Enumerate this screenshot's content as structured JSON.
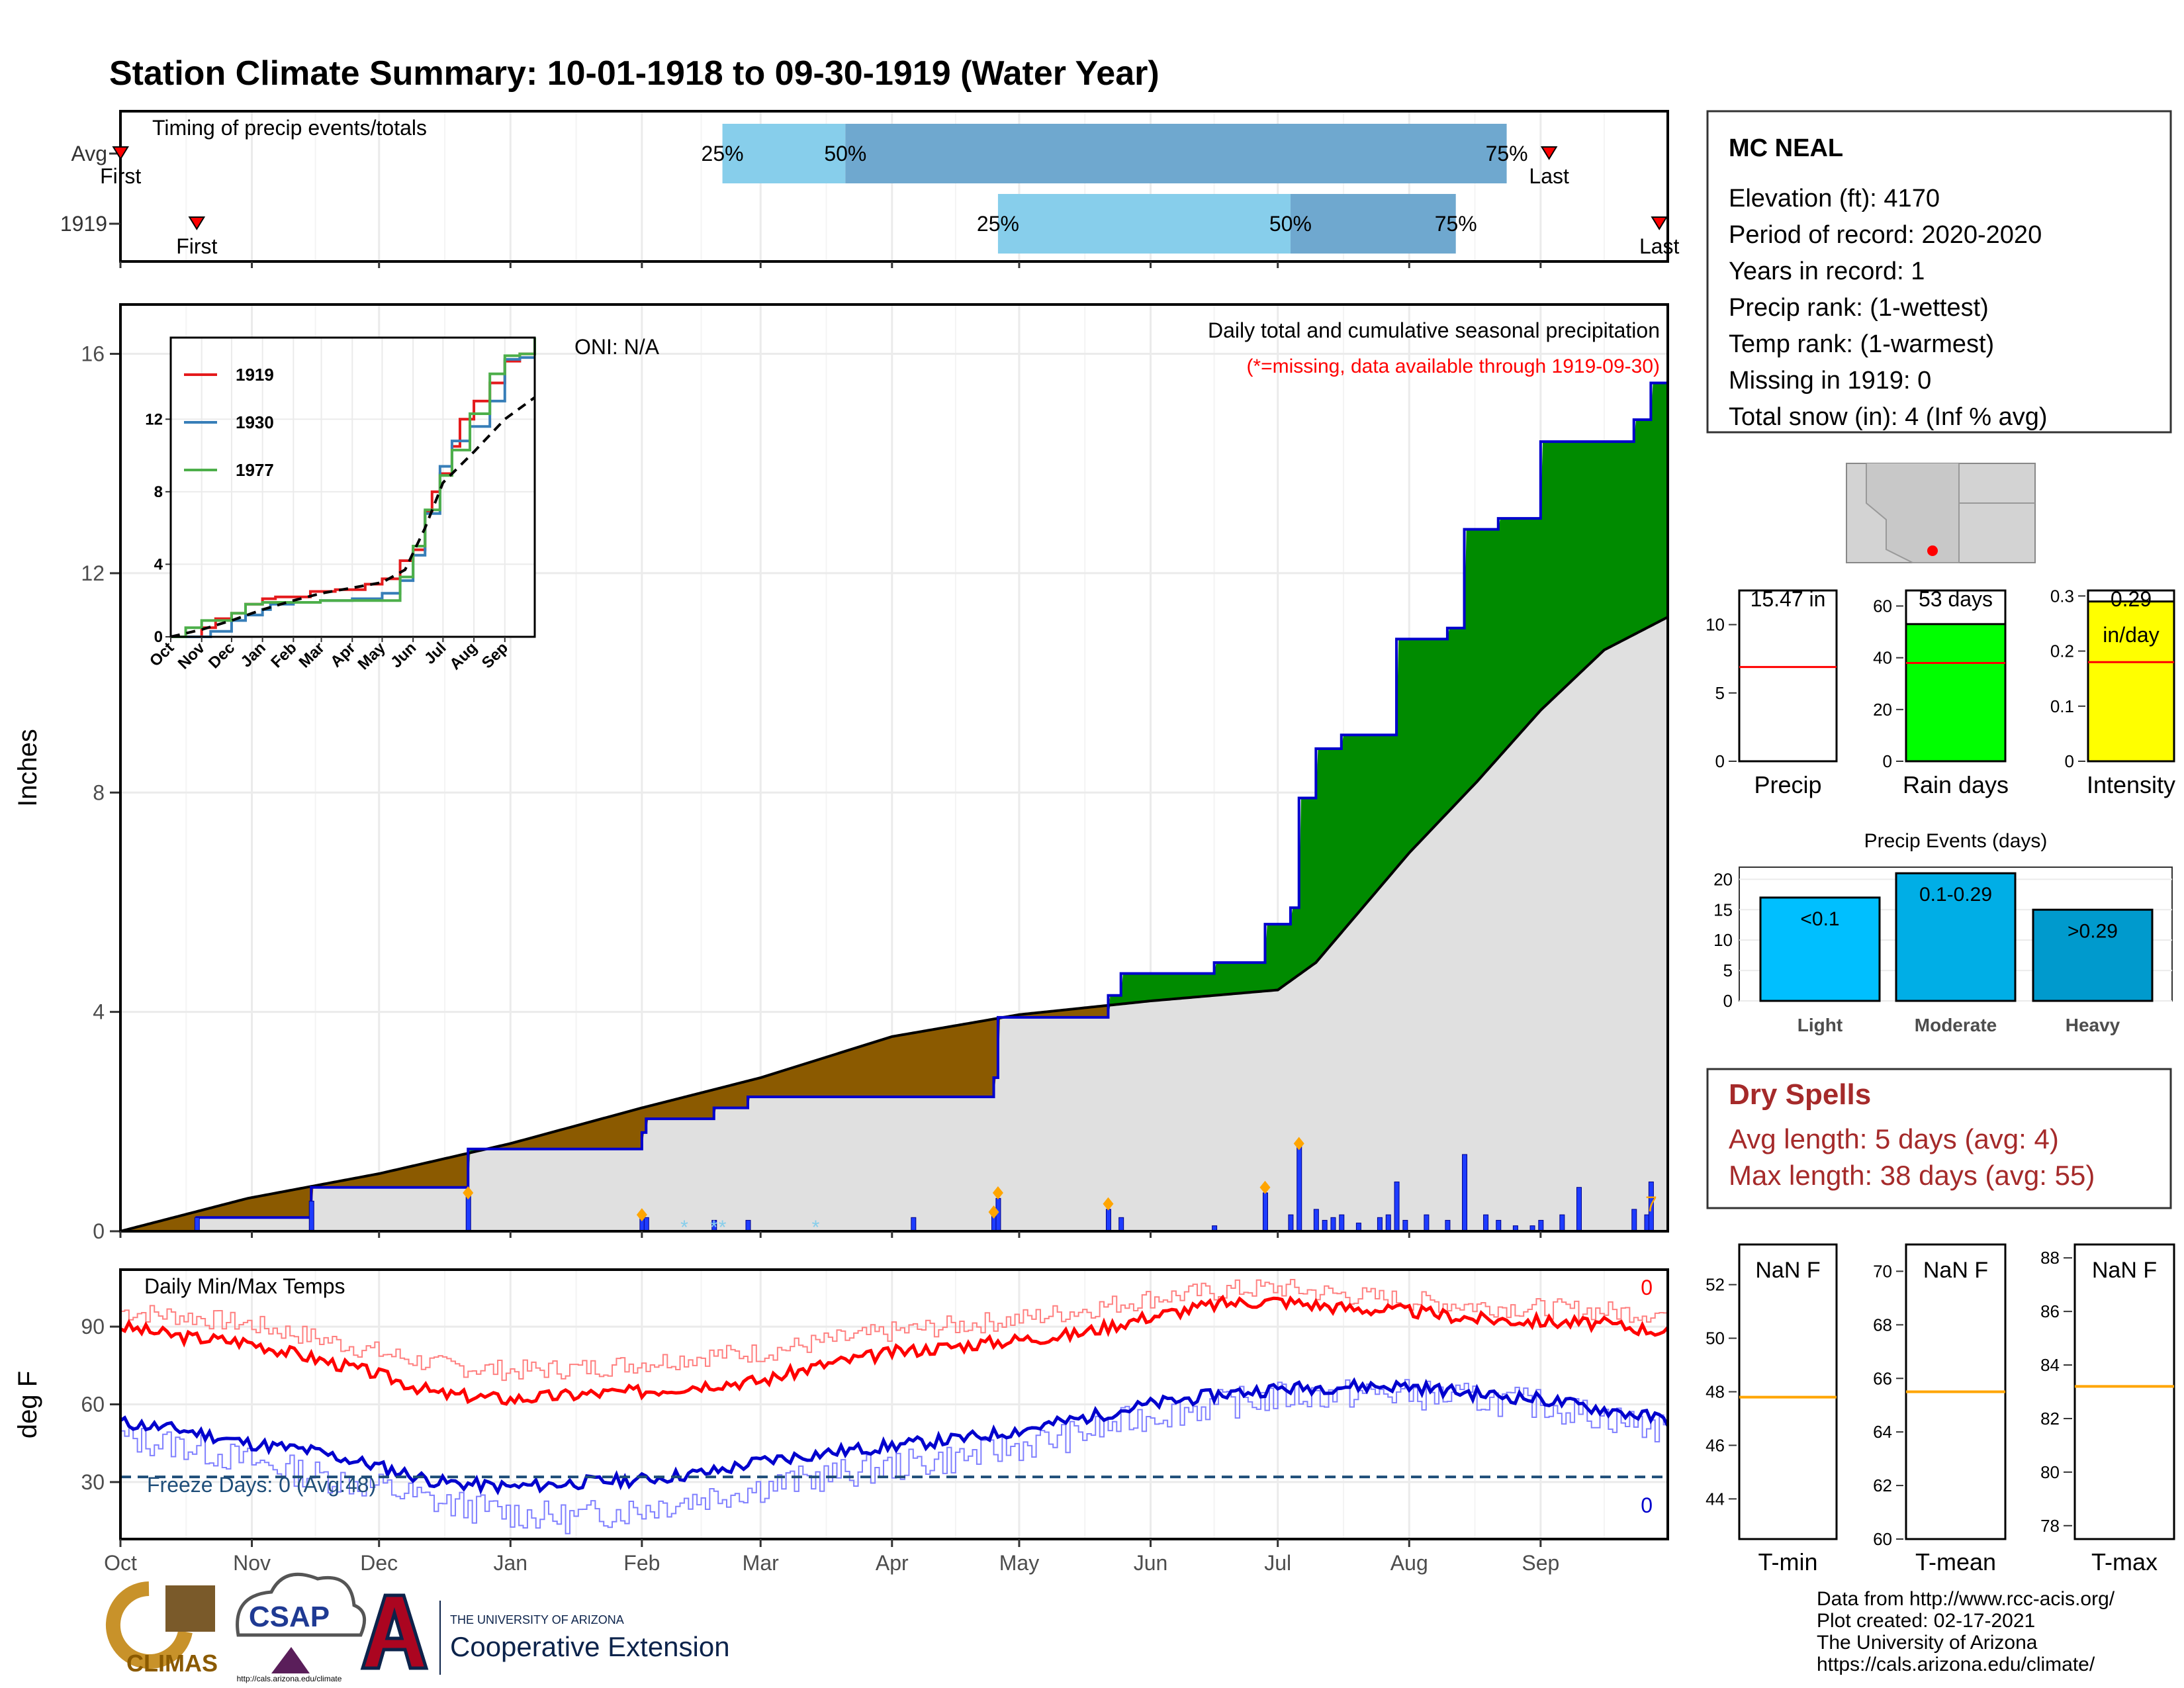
{
  "title": "Station Climate Summary: 10-01-1918 to 09-30-1919 (Water Year)",
  "colors": {
    "title": "#8b2500",
    "frame": "#000000",
    "grid": "#ebebeb",
    "light_blue": "#87ceeb",
    "mid_blue": "#6fa8cf",
    "deficit_brown": "#8b5a00",
    "surplus_green": "#008b00",
    "normal_fill": "#e0e0e0",
    "precip_line": "#0000cd",
    "bar_blue": "#1e3cff",
    "marker_orange": "#ffa500",
    "tmax": "#ff0000",
    "tmin": "#0000cd",
    "rain_green": "#00ff00",
    "intensity_yellow": "#ffff00",
    "event_light": "#00bfff",
    "event_moderate": "#00aee6",
    "event_heavy": "#009acd",
    "dry_spell_text": "#a52a2a",
    "freeze_line": "#1f4e79"
  },
  "timing": {
    "title": "Timing of precip events/totals",
    "rows": [
      {
        "label": "Avg",
        "first_label": "First",
        "last_label": "Last",
        "first": 0.03,
        "p25": 142,
        "p50": 171,
        "p75": 327,
        "last": 337,
        "labels": {
          "p25": "25%",
          "p50": "50%",
          "p75": "75%"
        }
      },
      {
        "label": "1919",
        "first_label": "First",
        "last_label": "Last",
        "first": 18,
        "p25": 207,
        "p50": 276,
        "p75": 315,
        "last": 363,
        "labels": {
          "p25": "25%",
          "p50": "50%",
          "p75": "75%"
        }
      }
    ]
  },
  "months": [
    "Oct",
    "Nov",
    "Dec",
    "Jan",
    "Feb",
    "Mar",
    "Apr",
    "May",
    "Jun",
    "Jul",
    "Aug",
    "Sep"
  ],
  "month_starts": [
    0,
    31,
    61,
    92,
    123,
    151,
    182,
    212,
    243,
    273,
    304,
    335
  ],
  "precip": {
    "ylabel": "Inches",
    "y_ticks": [
      0,
      4,
      8,
      12,
      16
    ],
    "ylim": [
      0,
      16.9
    ],
    "oni": "ONI: N/A",
    "subtitle": "Daily total and cumulative seasonal precipitation",
    "missing_note": "(*=missing, data available through 1919-09-30)",
    "corner_mark": "7",
    "normal_cumulative": [
      [
        0,
        0
      ],
      [
        30,
        0.6
      ],
      [
        61,
        1.05
      ],
      [
        92,
        1.6
      ],
      [
        123,
        2.25
      ],
      [
        151,
        2.8
      ],
      [
        182,
        3.55
      ],
      [
        212,
        3.95
      ],
      [
        243,
        4.2
      ],
      [
        258,
        4.3
      ],
      [
        273,
        4.4
      ],
      [
        282,
        4.9
      ],
      [
        293,
        5.9
      ],
      [
        304,
        6.9
      ],
      [
        320,
        8.2
      ],
      [
        335,
        9.5
      ],
      [
        350,
        10.6
      ],
      [
        365,
        11.2
      ]
    ],
    "observed_cumulative": [
      [
        0,
        0
      ],
      [
        18,
        0
      ],
      [
        18,
        0.25
      ],
      [
        45,
        0.25
      ],
      [
        45,
        0.8
      ],
      [
        82,
        0.8
      ],
      [
        82,
        1.5
      ],
      [
        123,
        1.5
      ],
      [
        123,
        1.8
      ],
      [
        124,
        1.8
      ],
      [
        124,
        2.05
      ],
      [
        140,
        2.05
      ],
      [
        140,
        2.25
      ],
      [
        148,
        2.25
      ],
      [
        148,
        2.45
      ],
      [
        206,
        2.45
      ],
      [
        206,
        2.8
      ],
      [
        207,
        2.8
      ],
      [
        207,
        3.9
      ],
      [
        233,
        3.9
      ],
      [
        233,
        4.3
      ],
      [
        236,
        4.3
      ],
      [
        236,
        4.7
      ],
      [
        258,
        4.7
      ],
      [
        258,
        4.9
      ],
      [
        270,
        4.9
      ],
      [
        270,
        5.6
      ],
      [
        276,
        5.6
      ],
      [
        276,
        5.9
      ],
      [
        278,
        5.9
      ],
      [
        278,
        7.9
      ],
      [
        282,
        7.9
      ],
      [
        282,
        8.8
      ],
      [
        288,
        8.8
      ],
      [
        288,
        9.05
      ],
      [
        301,
        9.05
      ],
      [
        301,
        10.8
      ],
      [
        313,
        10.8
      ],
      [
        313,
        11.0
      ],
      [
        317,
        11.0
      ],
      [
        317,
        12.8
      ],
      [
        325,
        12.8
      ],
      [
        325,
        13.0
      ],
      [
        335,
        13.0
      ],
      [
        335,
        14.4
      ],
      [
        357,
        14.4
      ],
      [
        357,
        14.8
      ],
      [
        361,
        14.8
      ],
      [
        361,
        15.47
      ],
      [
        365,
        15.47
      ]
    ],
    "daily_bars": [
      [
        18,
        0.25
      ],
      [
        45,
        0.55
      ],
      [
        82,
        0.7
      ],
      [
        123,
        0.3
      ],
      [
        124,
        0.25
      ],
      [
        140,
        0.2
      ],
      [
        148,
        0.2
      ],
      [
        187,
        0.25
      ],
      [
        206,
        0.35
      ],
      [
        207,
        0.6
      ],
      [
        233,
        0.4
      ],
      [
        236,
        0.25
      ],
      [
        258,
        0.1
      ],
      [
        270,
        0.7
      ],
      [
        276,
        0.3
      ],
      [
        278,
        1.6
      ],
      [
        282,
        0.4
      ],
      [
        284,
        0.2
      ],
      [
        286,
        0.25
      ],
      [
        288,
        0.3
      ],
      [
        292,
        0.15
      ],
      [
        297,
        0.25
      ],
      [
        299,
        0.3
      ],
      [
        301,
        0.9
      ],
      [
        303,
        0.2
      ],
      [
        308,
        0.3
      ],
      [
        313,
        0.2
      ],
      [
        317,
        1.4
      ],
      [
        322,
        0.3
      ],
      [
        325,
        0.2
      ],
      [
        329,
        0.1
      ],
      [
        333,
        0.1
      ],
      [
        335,
        0.2
      ],
      [
        340,
        0.3
      ],
      [
        344,
        0.8
      ],
      [
        357,
        0.4
      ],
      [
        360,
        0.3
      ],
      [
        361,
        0.9
      ]
    ],
    "orange_markers": [
      [
        82,
        0.7
      ],
      [
        123,
        0.3
      ],
      [
        206,
        0.35
      ],
      [
        207,
        0.7
      ],
      [
        233,
        0.5
      ],
      [
        270,
        0.8
      ],
      [
        278,
        1.6
      ]
    ],
    "missing_markers": [
      [
        133,
        0.05
      ],
      [
        140,
        0.05
      ],
      [
        142,
        0.05
      ],
      [
        164,
        0.05
      ]
    ]
  },
  "inset": {
    "legend": [
      "1919",
      "1930",
      "1977"
    ],
    "legend_colors": [
      "#e41a1c",
      "#377eb8",
      "#4daf4a"
    ],
    "y_ticks": [
      0,
      4,
      8,
      12
    ],
    "ylim": [
      0,
      16.5
    ],
    "x_labels": [
      "Oct",
      "Nov",
      "Dec",
      "Jan",
      "Feb",
      "Mar",
      "Apr",
      "May",
      "Jun",
      "Jul",
      "Aug",
      "Sep"
    ],
    "series": [
      {
        "name": "1919",
        "points": [
          [
            0,
            0
          ],
          [
            31,
            0.5
          ],
          [
            45,
            1.0
          ],
          [
            61,
            1.3
          ],
          [
            75,
            1.8
          ],
          [
            92,
            2.1
          ],
          [
            105,
            2.2
          ],
          [
            123,
            2.2
          ],
          [
            140,
            2.5
          ],
          [
            165,
            2.6
          ],
          [
            182,
            2.6
          ],
          [
            195,
            2.9
          ],
          [
            212,
            3.2
          ],
          [
            230,
            4.2
          ],
          [
            243,
            4.8
          ],
          [
            255,
            6.9
          ],
          [
            262,
            8.0
          ],
          [
            270,
            9.0
          ],
          [
            282,
            10.5
          ],
          [
            290,
            12.0
          ],
          [
            304,
            13.0
          ],
          [
            320,
            14.0
          ],
          [
            335,
            15.2
          ],
          [
            350,
            15.6
          ],
          [
            365,
            16.2
          ]
        ]
      },
      {
        "name": "1930",
        "points": [
          [
            0,
            0
          ],
          [
            40,
            0.3
          ],
          [
            61,
            0.9
          ],
          [
            75,
            1.2
          ],
          [
            92,
            1.5
          ],
          [
            100,
            1.8
          ],
          [
            123,
            1.9
          ],
          [
            150,
            2.0
          ],
          [
            182,
            2.1
          ],
          [
            212,
            2.4
          ],
          [
            230,
            3.1
          ],
          [
            243,
            4.5
          ],
          [
            255,
            6.8
          ],
          [
            270,
            9.4
          ],
          [
            282,
            10.8
          ],
          [
            300,
            11.6
          ],
          [
            320,
            13.0
          ],
          [
            335,
            15.3
          ],
          [
            350,
            15.4
          ],
          [
            365,
            15.4
          ]
        ]
      },
      {
        "name": "1977",
        "points": [
          [
            0,
            0
          ],
          [
            15,
            0.5
          ],
          [
            31,
            0.9
          ],
          [
            61,
            1.3
          ],
          [
            75,
            1.8
          ],
          [
            92,
            1.9
          ],
          [
            123,
            1.9
          ],
          [
            150,
            2.0
          ],
          [
            182,
            2.0
          ],
          [
            212,
            2.0
          ],
          [
            230,
            3.3
          ],
          [
            243,
            5.0
          ],
          [
            255,
            7.0
          ],
          [
            270,
            8.9
          ],
          [
            282,
            10.3
          ],
          [
            300,
            12.3
          ],
          [
            320,
            14.5
          ],
          [
            335,
            15.5
          ],
          [
            350,
            15.6
          ],
          [
            365,
            16.5
          ]
        ]
      }
    ],
    "average": [
      [
        0,
        0
      ],
      [
        31,
        0.4
      ],
      [
        61,
        0.9
      ],
      [
        92,
        1.5
      ],
      [
        123,
        2.0
      ],
      [
        151,
        2.4
      ],
      [
        182,
        2.7
      ],
      [
        212,
        3.0
      ],
      [
        235,
        3.7
      ],
      [
        255,
        6.0
      ],
      [
        273,
        8.5
      ],
      [
        304,
        10.2
      ],
      [
        335,
        12.0
      ],
      [
        365,
        13.2
      ]
    ]
  },
  "temps": {
    "title": "Daily Min/Max Temps",
    "ylabel": "deg F",
    "y_ticks": [
      30,
      60,
      90
    ],
    "ylim": [
      8,
      112
    ],
    "freeze_note": "Freeze Days: 0 (Avg:48)",
    "freeze_level": 32,
    "tmax_count": "0",
    "tmin_count": "0",
    "tmax_obs_key": [
      [
        0,
        90
      ],
      [
        15,
        86
      ],
      [
        30,
        84
      ],
      [
        45,
        78
      ],
      [
        60,
        72
      ],
      [
        75,
        64
      ],
      [
        92,
        62
      ],
      [
        110,
        64
      ],
      [
        123,
        65
      ],
      [
        140,
        68
      ],
      [
        151,
        69
      ],
      [
        165,
        75
      ],
      [
        182,
        80
      ],
      [
        200,
        83
      ],
      [
        212,
        85
      ],
      [
        225,
        87
      ],
      [
        243,
        94
      ],
      [
        260,
        99
      ],
      [
        273,
        100
      ],
      [
        290,
        97
      ],
      [
        304,
        96
      ],
      [
        320,
        93
      ],
      [
        335,
        92
      ],
      [
        350,
        91
      ],
      [
        365,
        88
      ]
    ],
    "tmax_avg_key": [
      [
        0,
        96
      ],
      [
        15,
        94
      ],
      [
        30,
        91
      ],
      [
        45,
        86
      ],
      [
        61,
        80
      ],
      [
        75,
        75
      ],
      [
        92,
        73
      ],
      [
        110,
        74
      ],
      [
        123,
        76
      ],
      [
        140,
        79
      ],
      [
        151,
        80
      ],
      [
        165,
        84
      ],
      [
        182,
        88
      ],
      [
        200,
        91
      ],
      [
        212,
        93
      ],
      [
        225,
        96
      ],
      [
        243,
        101
      ],
      [
        260,
        104
      ],
      [
        273,
        105
      ],
      [
        290,
        102
      ],
      [
        304,
        100
      ],
      [
        320,
        98
      ],
      [
        335,
        97
      ],
      [
        350,
        96
      ],
      [
        365,
        95
      ]
    ],
    "tmin_obs_key": [
      [
        0,
        53
      ],
      [
        15,
        50
      ],
      [
        30,
        45
      ],
      [
        45,
        42
      ],
      [
        61,
        36
      ],
      [
        75,
        30
      ],
      [
        92,
        28
      ],
      [
        110,
        30
      ],
      [
        123,
        31
      ],
      [
        140,
        34
      ],
      [
        151,
        38
      ],
      [
        165,
        41
      ],
      [
        182,
        44
      ],
      [
        200,
        47
      ],
      [
        212,
        50
      ],
      [
        225,
        54
      ],
      [
        243,
        60
      ],
      [
        260,
        64
      ],
      [
        273,
        66
      ],
      [
        290,
        67
      ],
      [
        304,
        67
      ],
      [
        320,
        64
      ],
      [
        335,
        62
      ],
      [
        350,
        58
      ],
      [
        365,
        54
      ]
    ],
    "tmin_avg_key": [
      [
        0,
        47
      ],
      [
        15,
        44
      ],
      [
        30,
        38
      ],
      [
        45,
        33
      ],
      [
        61,
        28
      ],
      [
        75,
        22
      ],
      [
        92,
        18
      ],
      [
        105,
        16
      ],
      [
        123,
        20
      ],
      [
        140,
        25
      ],
      [
        151,
        28
      ],
      [
        165,
        32
      ],
      [
        182,
        36
      ],
      [
        200,
        40
      ],
      [
        212,
        44
      ],
      [
        225,
        48
      ],
      [
        243,
        56
      ],
      [
        260,
        60
      ],
      [
        273,
        63
      ],
      [
        290,
        64
      ],
      [
        304,
        64
      ],
      [
        320,
        62
      ],
      [
        335,
        60
      ],
      [
        350,
        55
      ],
      [
        365,
        50
      ]
    ]
  },
  "station": {
    "name": "MC NEAL",
    "lines": [
      "Elevation (ft): 4170",
      "Period of record: 2020-2020",
      "Years in record: 1",
      "Precip rank:  (1-wettest)",
      "Temp rank:  (1-warmest)",
      "Missing in 1919: 0",
      "Total snow (in): 4 (Inf % avg)"
    ]
  },
  "summary_bars": [
    {
      "label": "Precip",
      "value_text": "15.47 in",
      "value": 15.47,
      "avg": 6.9,
      "ylim": [
        0,
        12.5
      ],
      "ticks": [
        0,
        5,
        10
      ],
      "fill": "#ffffff"
    },
    {
      "label": "Rain days",
      "value_text": "53 days",
      "value": 53,
      "avg": 38,
      "ylim": [
        0,
        66
      ],
      "ticks": [
        0,
        20,
        40,
        60
      ],
      "fill": "#00ff00"
    },
    {
      "label": "Intensity",
      "value_text": "0.29",
      "unit_text": "in/day",
      "value": 0.29,
      "avg": 0.18,
      "ylim": [
        0,
        0.31
      ],
      "ticks": [
        0.0,
        0.1,
        0.2,
        0.3
      ],
      "fill": "#ffff00"
    }
  ],
  "events": {
    "title": "Precip Events (days)",
    "ylim": [
      0,
      22
    ],
    "ticks": [
      0,
      5,
      10,
      15,
      20
    ],
    "bars": [
      {
        "category": "Light",
        "range": "<0.1",
        "value": 17
      },
      {
        "category": "Moderate",
        "range": "0.1-0.29",
        "value": 21
      },
      {
        "category": "Heavy",
        "range": ">0.29",
        "value": 15
      }
    ]
  },
  "dry_spells": {
    "title": "Dry Spells",
    "avg_length": "Avg length: 5 days (avg: 4)",
    "max_length": "Max length: 38 days (avg: 55)"
  },
  "temp_panels": [
    {
      "label": "T-min",
      "value_text": "NaN F",
      "avg": 47.8,
      "ylim": [
        42.5,
        53.5
      ],
      "ticks": [
        44,
        46,
        48,
        50,
        52
      ]
    },
    {
      "label": "T-mean",
      "value_text": "NaN F",
      "avg": 65.5,
      "ylim": [
        60,
        71
      ],
      "ticks": [
        60,
        62,
        64,
        66,
        68,
        70
      ]
    },
    {
      "label": "T-max",
      "value_text": "NaN F",
      "avg": 83.2,
      "ylim": [
        77.5,
        88.5
      ],
      "ticks": [
        78,
        80,
        82,
        84,
        86,
        88
      ]
    }
  ],
  "footer": {
    "lines": [
      "Data from http://www.rcc-acis.org/",
      "Plot created: 02-17-2021",
      "The University of Arizona",
      "https://cals.arizona.edu/climate/"
    ],
    "climas": "CLIMAS",
    "csap": "CSAP",
    "csap_url": "http://cals.arizona.edu/climate",
    "ua_small": "THE UNIVERSITY OF ARIZONA",
    "ua_big": "Cooperative Extension"
  }
}
